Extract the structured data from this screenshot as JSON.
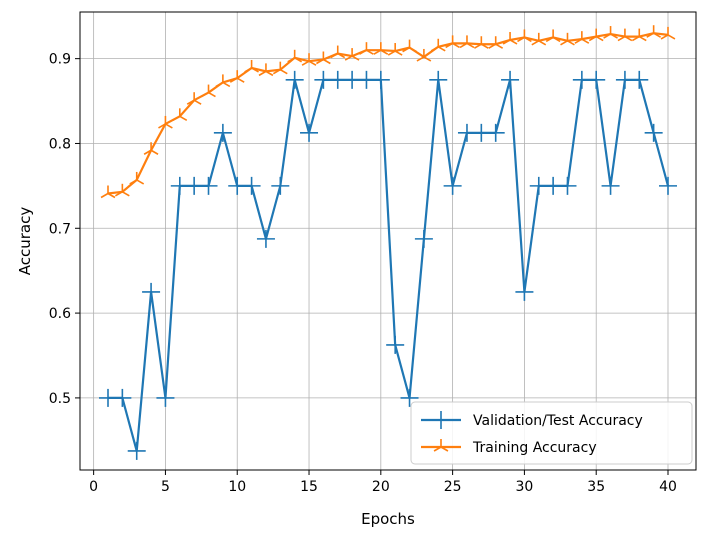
{
  "chart_data": {
    "type": "line",
    "xlabel": "Epochs",
    "ylabel": "Accuracy",
    "xlim": [
      -0.95,
      41.95
    ],
    "ylim": [
      0.415,
      0.955
    ],
    "xticks": [
      0,
      5,
      10,
      15,
      20,
      25,
      30,
      35,
      40
    ],
    "xtick_labels": [
      "0",
      "5",
      "10",
      "15",
      "20",
      "25",
      "30",
      "35",
      "40"
    ],
    "yticks": [
      0.5,
      0.6,
      0.7,
      0.8,
      0.9
    ],
    "ytick_labels": [
      "0.5",
      "0.6",
      "0.7",
      "0.8",
      "0.9"
    ],
    "grid": true,
    "legend": "lower right",
    "x": [
      1,
      2,
      3,
      4,
      5,
      6,
      7,
      8,
      9,
      10,
      11,
      12,
      13,
      14,
      15,
      16,
      17,
      18,
      19,
      20,
      21,
      22,
      23,
      24,
      25,
      26,
      27,
      28,
      29,
      30,
      31,
      32,
      33,
      34,
      35,
      36,
      37,
      38,
      39,
      40
    ],
    "series": [
      {
        "name": "Validation/Test Accuracy",
        "color": "#1f77b4",
        "marker": "plus",
        "values": [
          0.5,
          0.5,
          0.4375,
          0.625,
          0.5,
          0.75,
          0.75,
          0.75,
          0.8125,
          0.75,
          0.75,
          0.6875,
          0.75,
          0.875,
          0.8125,
          0.875,
          0.875,
          0.875,
          0.875,
          0.875,
          0.5625,
          0.5,
          0.6875,
          0.875,
          0.75,
          0.8125,
          0.8125,
          0.8125,
          0.875,
          0.625,
          0.75,
          0.75,
          0.75,
          0.875,
          0.875,
          0.75,
          0.875,
          0.875,
          0.8125,
          0.75
        ]
      },
      {
        "name": "Training Accuracy",
        "color": "#ff7f0e",
        "marker": "tri",
        "values": [
          0.741,
          0.743,
          0.757,
          0.792,
          0.823,
          0.832,
          0.851,
          0.86,
          0.872,
          0.877,
          0.889,
          0.885,
          0.887,
          0.901,
          0.897,
          0.899,
          0.906,
          0.903,
          0.91,
          0.91,
          0.909,
          0.913,
          0.902,
          0.914,
          0.918,
          0.918,
          0.917,
          0.917,
          0.922,
          0.925,
          0.921,
          0.925,
          0.921,
          0.923,
          0.926,
          0.929,
          0.926,
          0.926,
          0.93,
          0.928
        ]
      }
    ]
  }
}
